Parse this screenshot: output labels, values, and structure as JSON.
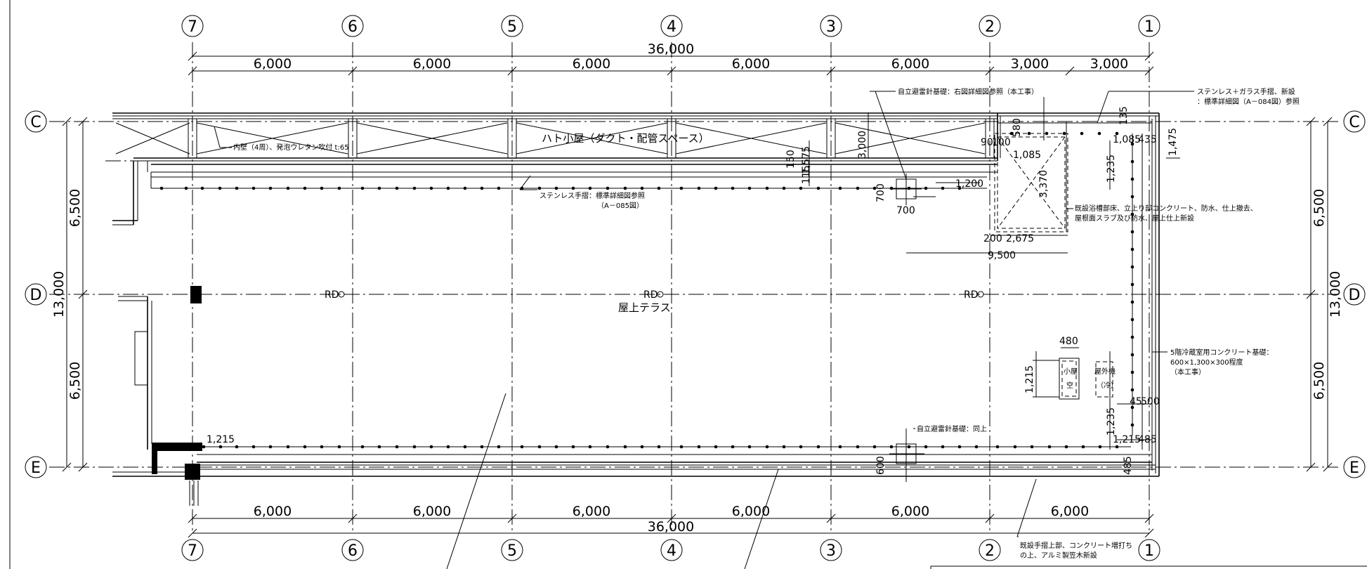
{
  "columns": [
    {
      "id": "c7",
      "label": "7"
    },
    {
      "id": "c6",
      "label": "6"
    },
    {
      "id": "c5",
      "label": "5"
    },
    {
      "id": "c4",
      "label": "4"
    },
    {
      "id": "c3",
      "label": "3"
    },
    {
      "id": "c2",
      "label": "2"
    },
    {
      "id": "c1",
      "label": "1"
    }
  ],
  "rows": [
    {
      "id": "rc",
      "label": "C"
    },
    {
      "id": "rd",
      "label": "D"
    },
    {
      "id": "re",
      "label": "E"
    }
  ],
  "dims": {
    "top_total": "36,000",
    "top": [
      "6,000",
      "6,000",
      "6,000",
      "6,000",
      "6,000",
      "3,000",
      "3,000"
    ],
    "bottom_total": "36,000",
    "bottom": [
      "6,000",
      "6,000",
      "6,000",
      "6,000",
      "6,000",
      "6,000"
    ],
    "left_total": "13,000",
    "left": [
      "6,500",
      "6,500"
    ],
    "right_total": "13,000",
    "right": [
      "6,500",
      "6,500"
    ]
  },
  "inner_dims": {
    "d1200": "1,200",
    "d700a": "700",
    "d700b": "700",
    "d90": "90",
    "d100": "100",
    "d580": "580",
    "d1085a": "1,085",
    "d1085b": "1,085",
    "d135": "135",
    "d435": "435",
    "d1475": "1,475",
    "d1235a": "1,235",
    "d3370": "3,370",
    "d200": "200",
    "d2675": "2,675",
    "d9500": "9,500",
    "d3000": "3,000",
    "d1575": "1,575",
    "d150": "150",
    "d115": "115",
    "d480": "480",
    "d1215a": "1,215",
    "d45": "45",
    "d500": "500",
    "d1235b": "1,235",
    "d1215b": "1,215",
    "d485a": "485",
    "d485b": "485",
    "d600": "600",
    "d1215c": "1,215"
  },
  "labels": {
    "hatogoya": "ハト小屋（ダクト・配管スペース）",
    "naiheki": "内壁（4周）、発泡ウレタン吹付 t:65",
    "stainless1": "ステンレス手摺：標準詳細図参照",
    "stainless1b": "（A－085図）",
    "jiritsu1": "自立避雷針基礎：右図詳細図参照（本工事）",
    "stainless2": "ステンレス＋ガラス手摺、新設",
    "stainless2b": "：標準詳細図（A－084図）参照",
    "kisetsu": "既設浴槽部床、立上り部コンクリート、防水、仕上撤去、",
    "kisetsub": "屋根面スラブ及び防水、屋上仕上新設",
    "rd1": "RD",
    "rd2": "RD",
    "rd3": "RD",
    "terrace": "屋上テラス",
    "reizou": "5階冷蔵室用コンクリート基礎：",
    "reizoub": "600×1,300×300程度",
    "reizouc": "（本工事）",
    "jiritsu2": "自立避雷針基礎：同上",
    "kisetsu2": "既設手摺上部、コンクリート増打ち",
    "kisetsu2b": "の上、アルミ製笠木新設",
    "box1": "小屋",
    "box1b": "空",
    "box2": "屋外機",
    "box2b": "（冷）"
  }
}
